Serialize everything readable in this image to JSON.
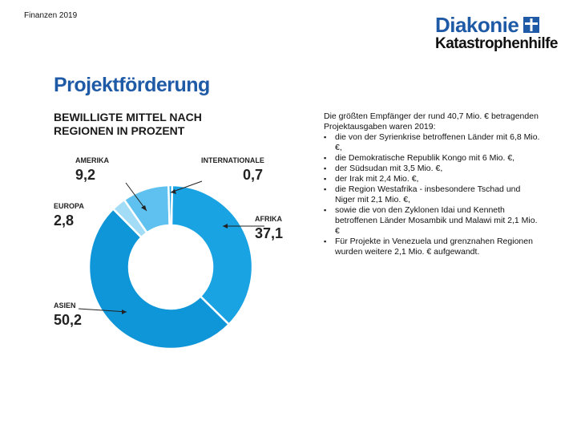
{
  "header": {
    "left_text": "Finanzen 2019"
  },
  "logo": {
    "line1": "Diakonie",
    "line2": "Katastrophenhilfe"
  },
  "section_title": "Projektförderung",
  "chart_data": {
    "type": "pie",
    "title": "BEWILLIGTE MITTEL NACH REGIONEN IN PROZENT",
    "labels": [
      "AFRIKA",
      "ASIEN",
      "EUROPA",
      "AMERIKA",
      "INTERNATIONALE"
    ],
    "value_labels": [
      "37,1",
      "50,2",
      "2,8",
      "9,2",
      "0,7"
    ],
    "values": [
      37.1,
      50.2,
      2.8,
      9.2,
      0.7
    ],
    "colors": [
      "#1aa3e3",
      "#0f96d8",
      "#a3dcf7",
      "#5ec1ef",
      "#1aa3e3"
    ],
    "donut": true
  },
  "text": {
    "intro": "Die größten Empfänger der rund 40,7 Mio. € betragenden Projektausgaben waren 2019:",
    "bullets": [
      "die von der Syrienkrise betroffenen Länder mit 6,8 Mio. €,",
      "die Demokratische Republik Kongo mit 6 Mio. €,",
      "der Südsudan mit 3,5 Mio. €,",
      "der Irak mit 2,4 Mio. €,",
      "die Region Westafrika - insbesondere Tschad und Niger mit 2,1 Mio. €,",
      "sowie die von den Zyklonen Idai und Kenneth betroffenen Länder Mosambik und Malawi mit 2,1 Mio. €",
      "Für Projekte in Venezuela und grenznahen Regionen wurden weitere 2,1 Mio. € aufgewandt."
    ]
  }
}
